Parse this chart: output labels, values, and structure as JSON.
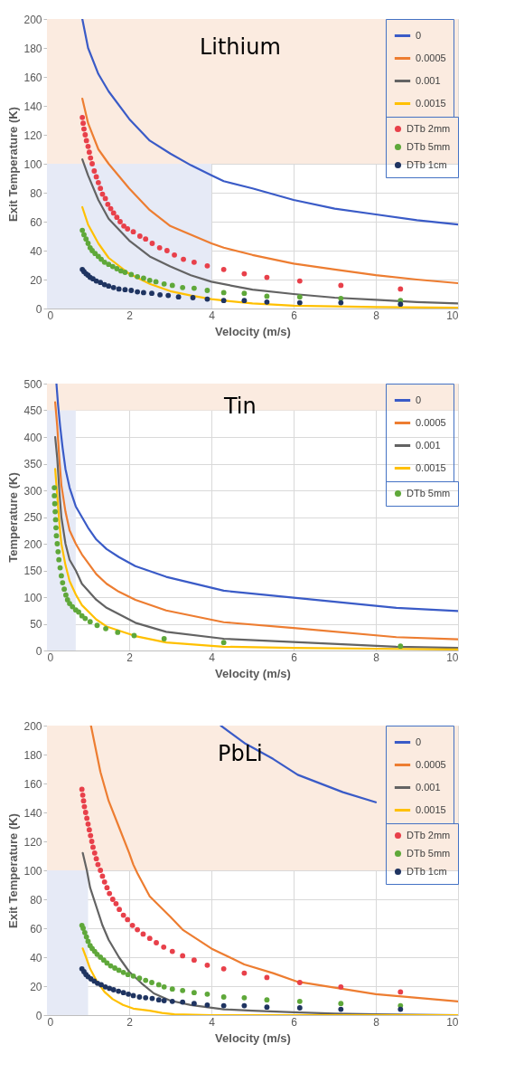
{
  "chart_data": [
    {
      "type": "line",
      "title": "Lithium",
      "xlabel": "Velocity (m/s)",
      "ylabel": "Exit Temperature (K)",
      "xlim": [
        0,
        10
      ],
      "ylim": [
        0,
        200
      ],
      "xticks": [
        0,
        2,
        4,
        6,
        8,
        10
      ],
      "yticks": [
        0,
        20,
        40,
        60,
        80,
        100,
        120,
        140,
        160,
        180,
        200
      ],
      "grid": true,
      "legend": "top right",
      "bands": [
        {
          "axis": "x",
          "from": 0,
          "to": 4,
          "color": "#e6eaf6"
        },
        {
          "axis": "y",
          "from": 100,
          "to": 200,
          "color": "#fbebe0"
        }
      ],
      "series": [
        {
          "name": "0",
          "type": "line",
          "color": "#3a5bc7",
          "x": [
            0.86,
            1,
            1.25,
            1.5,
            2,
            2.5,
            3,
            3.5,
            4,
            4.3,
            5,
            6,
            7,
            8,
            9,
            10
          ],
          "values": [
            200,
            180,
            162,
            150,
            131,
            116,
            107,
            99,
            92,
            88,
            83,
            75,
            69,
            65,
            61,
            58
          ]
        },
        {
          "name": "0.0005",
          "type": "line",
          "color": "#ed7d31",
          "x": [
            0.86,
            1,
            1.25,
            1.5,
            2,
            2.5,
            3,
            4,
            4.3,
            5,
            6,
            7,
            8,
            9,
            10
          ],
          "values": [
            145,
            128,
            110,
            100,
            83,
            68,
            57,
            45,
            42,
            37,
            31,
            27,
            23,
            20,
            17.5
          ]
        },
        {
          "name": "0.001",
          "type": "line",
          "color": "#636363",
          "x": [
            0.86,
            1,
            1.25,
            1.5,
            2,
            2.5,
            3,
            3.5,
            4,
            5,
            6,
            7,
            8,
            9,
            10
          ],
          "values": [
            103,
            92,
            75,
            62,
            47,
            36,
            29,
            23,
            18.5,
            13,
            10,
            7.5,
            6,
            4.5,
            3.5
          ]
        },
        {
          "name": "0.0015",
          "type": "line",
          "color": "#ffc000",
          "x": [
            0.86,
            1,
            1.25,
            1.5,
            2,
            2.5,
            3,
            3.5,
            4,
            4.3,
            5,
            6,
            7,
            8,
            10
          ],
          "values": [
            70,
            58,
            45,
            35,
            24,
            17,
            12,
            9,
            6.5,
            5.5,
            3.5,
            2,
            1.5,
            1,
            0.5
          ]
        },
        {
          "name": "DTb 2mm",
          "type": "scatter",
          "color": "#e8404a",
          "x": [
            0.86,
            0.88,
            0.9,
            0.93,
            0.96,
            1.0,
            1.03,
            1.06,
            1.1,
            1.15,
            1.2,
            1.25,
            1.3,
            1.35,
            1.42,
            1.48,
            1.55,
            1.62,
            1.7,
            1.78,
            1.87,
            1.96,
            2.1,
            2.26,
            2.4,
            2.56,
            2.74,
            2.92,
            3.1,
            3.32,
            3.58,
            3.9,
            4.3,
            4.8,
            5.35,
            6.15,
            7.15,
            8.6
          ],
          "values": [
            132,
            128,
            124,
            120,
            116,
            112,
            108,
            104,
            100,
            95,
            91,
            87,
            83,
            79,
            76,
            72,
            69,
            66,
            63,
            60,
            57,
            55,
            53,
            50,
            48,
            45,
            42,
            40,
            37,
            34,
            32,
            29.5,
            27,
            24,
            21.5,
            19,
            16,
            13.5
          ]
        },
        {
          "name": "DTb 5mm",
          "type": "scatter",
          "color": "#5fa83a",
          "x": [
            0.86,
            0.9,
            0.95,
            1.0,
            1.05,
            1.1,
            1.17,
            1.25,
            1.32,
            1.4,
            1.5,
            1.6,
            1.7,
            1.8,
            1.9,
            2.05,
            2.2,
            2.35,
            2.5,
            2.65,
            2.85,
            3.05,
            3.3,
            3.58,
            3.9,
            4.3,
            4.8,
            5.35,
            6.15,
            7.15,
            8.6
          ],
          "values": [
            54,
            51,
            48,
            45,
            42,
            40,
            38,
            36,
            34,
            32,
            30.5,
            29,
            27.5,
            26,
            25,
            23.5,
            22,
            21,
            19.5,
            18.5,
            17,
            16,
            14.5,
            14,
            12.5,
            11,
            10.5,
            8.5,
            8,
            7,
            5.5
          ]
        },
        {
          "name": "DTb 1cm",
          "type": "scatter",
          "color": "#1f3461",
          "x": [
            0.86,
            0.9,
            0.95,
            1.0,
            1.05,
            1.12,
            1.2,
            1.3,
            1.4,
            1.5,
            1.62,
            1.75,
            1.9,
            2.05,
            2.2,
            2.35,
            2.55,
            2.75,
            2.95,
            3.2,
            3.55,
            3.9,
            4.3,
            4.8,
            5.35,
            6.15,
            7.15,
            8.6
          ],
          "values": [
            27,
            25.5,
            24,
            23,
            21.5,
            20.5,
            19,
            18,
            16.5,
            15.5,
            14.5,
            13.5,
            13,
            12.5,
            11.5,
            11,
            10.5,
            9.5,
            9,
            8,
            7.5,
            6.5,
            5.5,
            5.5,
            4.5,
            4,
            4,
            3
          ]
        }
      ]
    },
    {
      "type": "line",
      "title": "Tin",
      "xlabel": "Velocity (m/s)",
      "ylabel": "Temperature (K)",
      "xlim": [
        0,
        10
      ],
      "ylim": [
        0,
        500
      ],
      "xticks": [
        0,
        2,
        4,
        6,
        8,
        10
      ],
      "yticks": [
        0,
        50,
        100,
        150,
        200,
        250,
        300,
        350,
        400,
        450,
        500
      ],
      "grid": true,
      "legend": "top right",
      "bands": [
        {
          "axis": "x",
          "from": 0,
          "to": 0.7,
          "color": "#e6eaf6"
        },
        {
          "axis": "y",
          "from": 450,
          "to": 500,
          "color": "#fbebe0"
        }
      ],
      "series": [
        {
          "name": "0",
          "type": "line",
          "color": "#3a5bc7",
          "x": [
            0.23,
            0.27,
            0.32,
            0.38,
            0.45,
            0.55,
            0.7,
            0.85,
            1.0,
            1.2,
            1.45,
            1.75,
            2.15,
            2.9,
            4.3,
            6,
            8.5,
            10
          ],
          "values": [
            500,
            460,
            420,
            380,
            340,
            305,
            270,
            250,
            230,
            208,
            190,
            175,
            158,
            138,
            112,
            99,
            80,
            74
          ]
        },
        {
          "name": "0.0005",
          "type": "line",
          "color": "#ed7d31",
          "x": [
            0.2,
            0.25,
            0.3,
            0.35,
            0.45,
            0.55,
            0.7,
            0.85,
            1.2,
            1.45,
            1.75,
            2.15,
            2.9,
            4.3,
            6,
            8.5,
            10
          ],
          "values": [
            465,
            420,
            360,
            310,
            260,
            225,
            200,
            180,
            143,
            125,
            110,
            95,
            75,
            53,
            42,
            25,
            21
          ]
        },
        {
          "name": "0.001",
          "type": "line",
          "color": "#636363",
          "x": [
            0.2,
            0.25,
            0.3,
            0.35,
            0.45,
            0.55,
            0.7,
            0.85,
            1.2,
            1.45,
            2.15,
            2.9,
            4.3,
            6,
            8.5,
            10
          ],
          "values": [
            400,
            360,
            300,
            250,
            200,
            170,
            150,
            125,
            95,
            80,
            52,
            35,
            22,
            16,
            7,
            5
          ]
        },
        {
          "name": "0.0015",
          "type": "line",
          "color": "#ffc000",
          "x": [
            0.2,
            0.25,
            0.3,
            0.35,
            0.45,
            0.55,
            0.7,
            0.85,
            1.2,
            1.45,
            2.15,
            2.9,
            4.3,
            6,
            8.5,
            10
          ],
          "values": [
            340,
            290,
            240,
            200,
            160,
            130,
            105,
            85,
            58,
            45,
            27,
            15,
            7,
            5,
            3,
            2
          ]
        },
        {
          "name": "DTb 5mm",
          "type": "scatter",
          "color": "#5fa83a",
          "x": [
            0.18,
            0.18,
            0.19,
            0.2,
            0.21,
            0.22,
            0.23,
            0.25,
            0.27,
            0.29,
            0.32,
            0.35,
            0.38,
            0.42,
            0.46,
            0.5,
            0.55,
            0.62,
            0.7,
            0.77,
            0.85,
            0.93,
            1.05,
            1.22,
            1.43,
            1.72,
            2.12,
            2.85,
            4.3,
            8.6
          ],
          "values": [
            305,
            290,
            275,
            260,
            245,
            230,
            215,
            200,
            185,
            170,
            155,
            140,
            127,
            115,
            104,
            95,
            88,
            82,
            76,
            72,
            65,
            60,
            54,
            47,
            41,
            34,
            28,
            22,
            15,
            8
          ]
        }
      ]
    },
    {
      "type": "line",
      "title": "PbLi",
      "xlabel": "Velocity (m/s)",
      "ylabel": "Exit Temperature (K)",
      "xlim": [
        0,
        10
      ],
      "ylim": [
        0,
        200
      ],
      "xticks": [
        0,
        2,
        4,
        6,
        8,
        10
      ],
      "yticks": [
        0,
        20,
        40,
        60,
        80,
        100,
        120,
        140,
        160,
        180,
        200
      ],
      "grid": true,
      "legend": "top right",
      "bands": [
        {
          "axis": "x",
          "from": 0,
          "to": 1,
          "color": "#e6eaf6"
        },
        {
          "axis": "y",
          "from": 100,
          "to": 200,
          "color": "#fbebe0"
        }
      ],
      "series": [
        {
          "name": "0",
          "type": "line",
          "color": "#3a5bc7",
          "x": [
            4.23,
            4.8,
            5.5,
            6.1,
            7.2,
            8
          ],
          "values": [
            200,
            188,
            177,
            166,
            154,
            147
          ]
        },
        {
          "name": "0.0005",
          "type": "line",
          "color": "#ed7d31",
          "x": [
            1.07,
            1.3,
            1.5,
            1.75,
            2,
            2.1,
            2.2,
            2.5,
            3,
            3.3,
            4,
            4.8,
            5.5,
            6.1,
            7,
            8,
            9,
            10
          ],
          "values": [
            200,
            168,
            148,
            130,
            112,
            104,
            98,
            82,
            68,
            59,
            46,
            35,
            29,
            23,
            19,
            14.5,
            12,
            9.5
          ]
        },
        {
          "name": "0.001",
          "type": "line",
          "color": "#636363",
          "x": [
            0.87,
            0.97,
            1.05,
            1.2,
            1.35,
            1.5,
            1.75,
            2,
            2.3,
            2.6,
            3,
            3.5,
            4.3,
            5,
            6,
            7,
            8,
            10
          ],
          "values": [
            112,
            100,
            88,
            75,
            62,
            52,
            40,
            30,
            22,
            15,
            10,
            7,
            4,
            3,
            2,
            1,
            0.5,
            0
          ]
        },
        {
          "name": "0.0015",
          "type": "line",
          "color": "#ffc000",
          "x": [
            0.87,
            0.95,
            1.05,
            1.2,
            1.4,
            1.6,
            1.85,
            2.1,
            2.5,
            2.8,
            3.1,
            4,
            10
          ],
          "values": [
            46,
            40,
            32,
            24,
            16,
            11,
            7,
            4.5,
            3,
            1.5,
            0.5,
            0,
            0
          ]
        },
        {
          "name": "DTb 2mm",
          "type": "scatter",
          "color": "#e8404a",
          "x": [
            0.85,
            0.87,
            0.89,
            0.91,
            0.94,
            0.97,
            1.0,
            1.03,
            1.06,
            1.09,
            1.12,
            1.16,
            1.2,
            1.24,
            1.3,
            1.35,
            1.4,
            1.46,
            1.52,
            1.6,
            1.68,
            1.76,
            1.86,
            1.96,
            2.08,
            2.2,
            2.34,
            2.5,
            2.66,
            2.84,
            3.05,
            3.3,
            3.58,
            3.9,
            4.3,
            4.8,
            5.35,
            6.15,
            7.15,
            8.6
          ],
          "values": [
            156,
            152,
            148,
            144,
            140,
            136,
            132,
            128,
            124,
            120,
            116,
            112,
            108,
            104,
            100,
            96,
            92,
            88,
            84,
            80,
            77,
            73,
            69,
            66,
            62,
            59,
            56,
            53,
            50,
            47,
            44,
            41,
            38,
            34.5,
            32,
            29,
            26,
            22.5,
            19.5,
            16
          ]
        },
        {
          "name": "DTb 5mm",
          "type": "scatter",
          "color": "#5fa83a",
          "x": [
            0.85,
            0.88,
            0.92,
            0.96,
            1.0,
            1.05,
            1.1,
            1.16,
            1.22,
            1.3,
            1.38,
            1.46,
            1.55,
            1.65,
            1.75,
            1.86,
            1.97,
            2.1,
            2.25,
            2.4,
            2.55,
            2.72,
            2.85,
            3.05,
            3.3,
            3.58,
            3.9,
            4.3,
            4.8,
            5.35,
            6.15,
            7.15,
            8.6
          ],
          "values": [
            62,
            60,
            57,
            54,
            51,
            48,
            46,
            44,
            42,
            40,
            38,
            36,
            34,
            32.5,
            31,
            29.5,
            28,
            27,
            25.5,
            24,
            22.5,
            21,
            19.5,
            18,
            17,
            15.5,
            14.5,
            12.5,
            12,
            10.5,
            9.5,
            8,
            6.5
          ]
        },
        {
          "name": "DTb 1cm",
          "type": "scatter",
          "color": "#1f3461",
          "x": [
            0.85,
            0.9,
            0.95,
            1.0,
            1.07,
            1.15,
            1.23,
            1.32,
            1.42,
            1.52,
            1.62,
            1.74,
            1.86,
            1.98,
            2.1,
            2.25,
            2.4,
            2.56,
            2.72,
            2.85,
            3.05,
            3.3,
            3.58,
            3.9,
            4.3,
            4.8,
            5.35,
            6.15,
            7.15,
            8.6
          ],
          "values": [
            32,
            30,
            28,
            26.5,
            25,
            23.5,
            22,
            21,
            19.5,
            18.5,
            17.5,
            16.5,
            15.5,
            14.5,
            13.5,
            12.5,
            12,
            11.5,
            10.5,
            10,
            9.5,
            9,
            8,
            7,
            6.5,
            6.5,
            5.5,
            5,
            4,
            4
          ]
        }
      ]
    }
  ]
}
